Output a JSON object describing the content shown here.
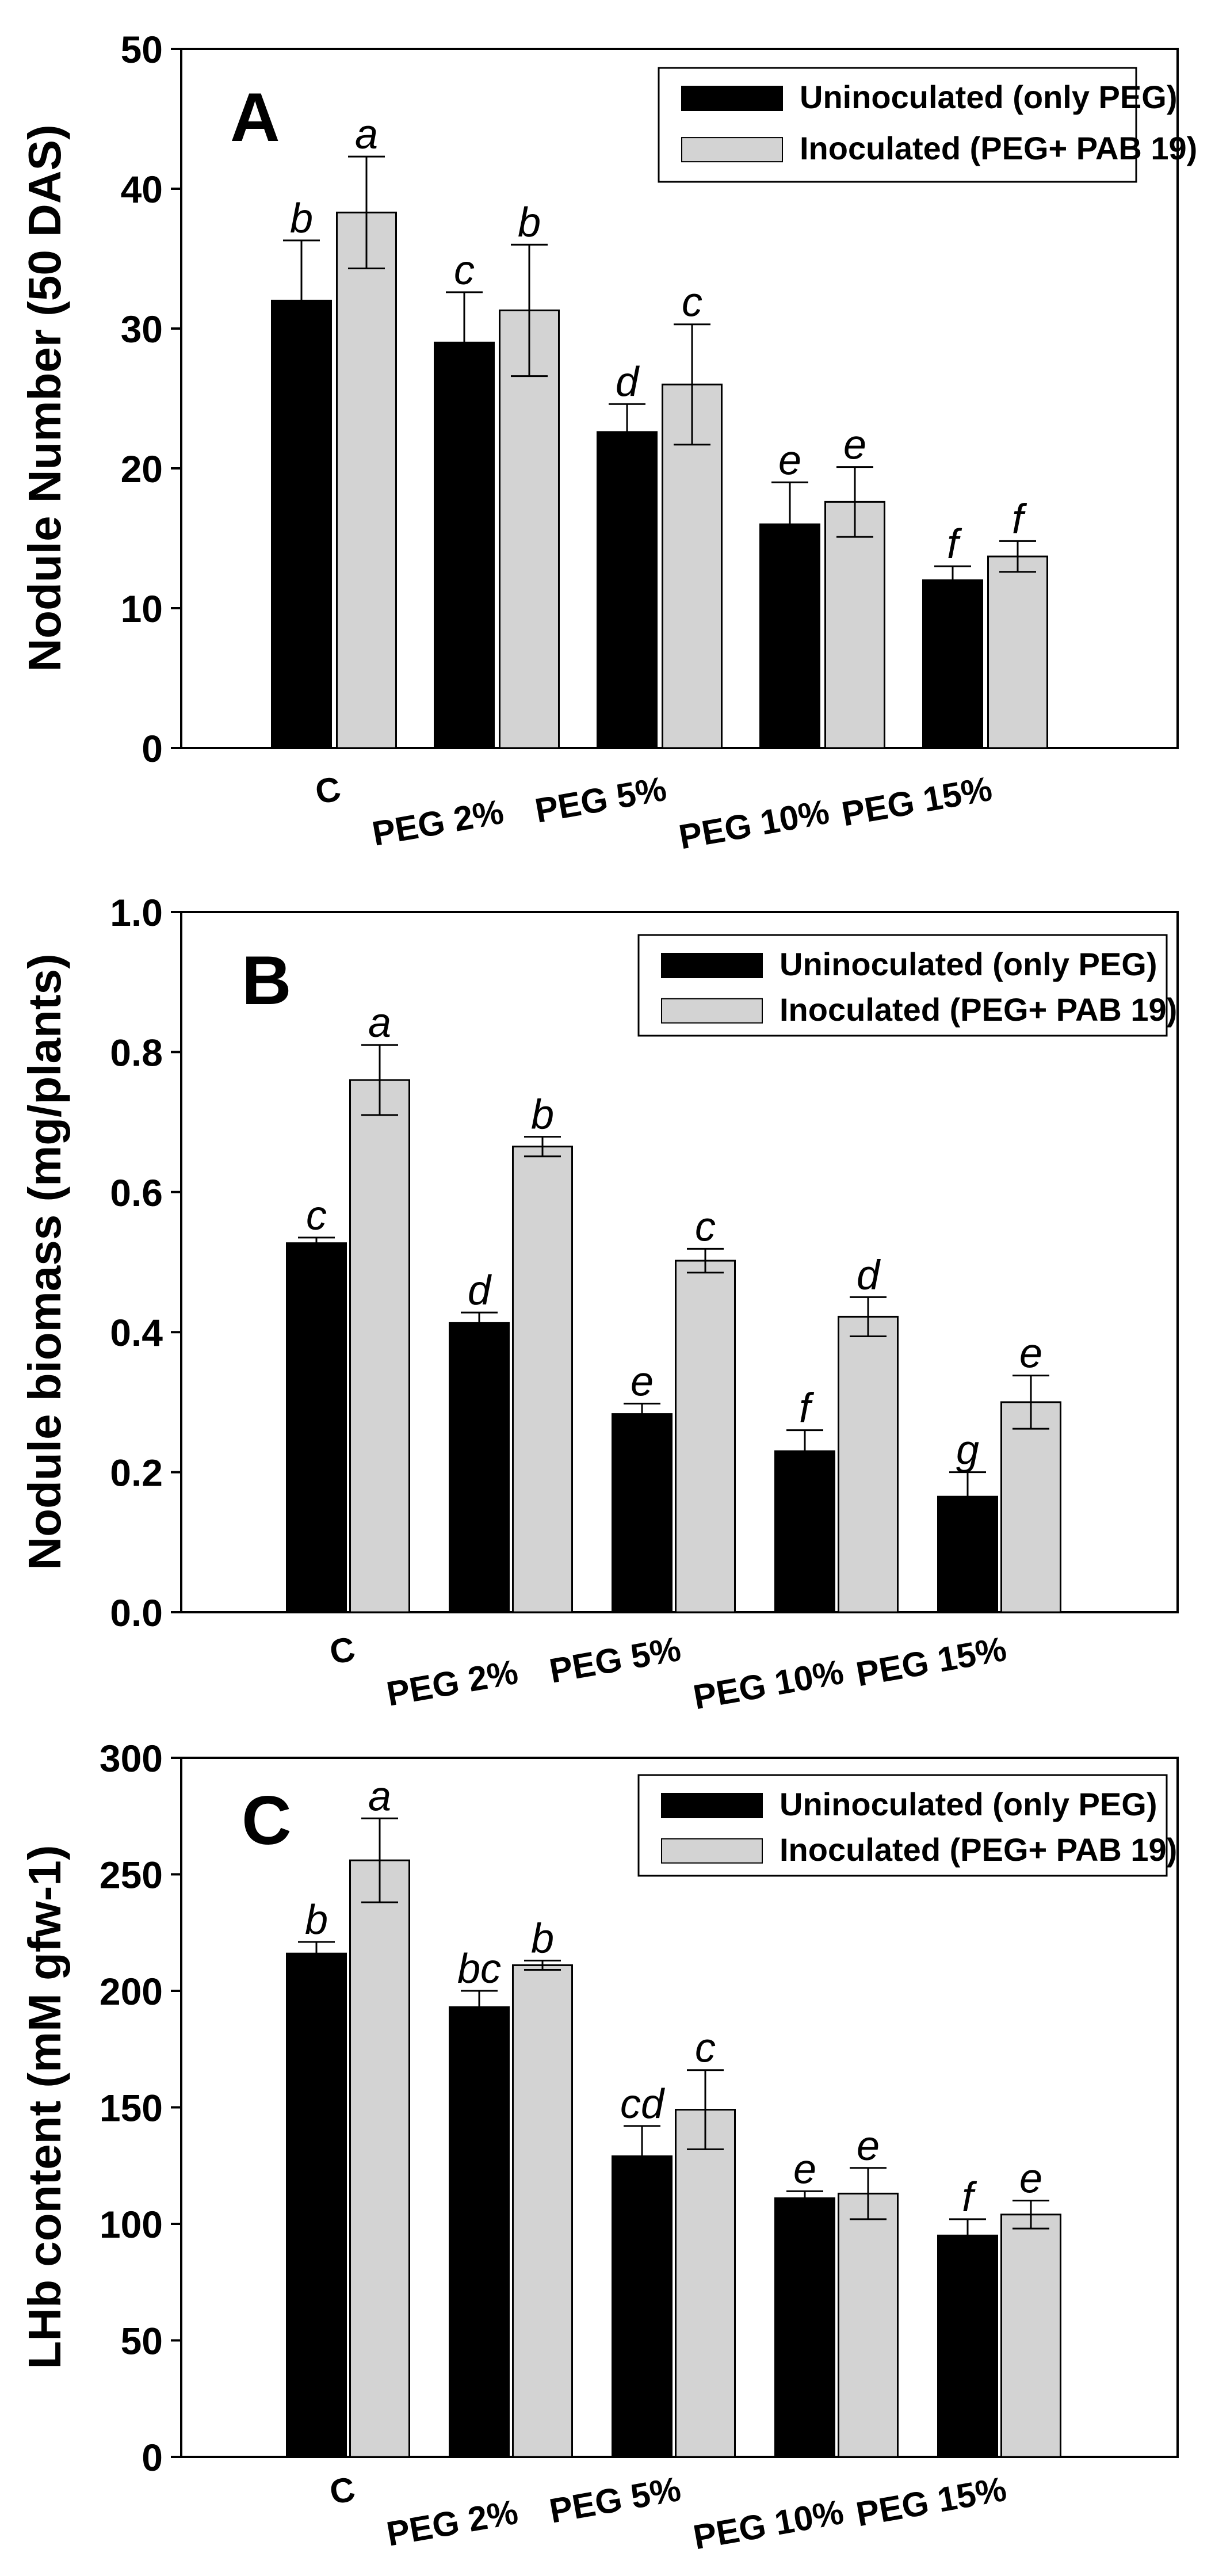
{
  "colors": {
    "uninoculated": "#000000",
    "inoculated": "#d3d3d3",
    "axis": "#000000",
    "background": "#ffffff"
  },
  "chart_data": [
    {
      "type": "bar",
      "panel": "A",
      "ylabel": "Nodule Number (50 DAS)",
      "ylim": [
        0,
        50
      ],
      "yticks": [
        "0",
        "10",
        "20",
        "30",
        "40",
        "50"
      ],
      "ytick_values": [
        0,
        10,
        20,
        30,
        40,
        50
      ],
      "categories": [
        "C",
        "PEG 2%",
        "PEG 5%",
        "PEG 10%",
        "PEG 15%"
      ],
      "legend_position": "top-right",
      "series": [
        {
          "name": "Uninoculated (only PEG)",
          "values": [
            32,
            29,
            22.6,
            16,
            12
          ],
          "errors": [
            4.3,
            3.6,
            2.0,
            3.0,
            1.0
          ],
          "labels": [
            "b",
            "c",
            "d",
            "e",
            "f"
          ]
        },
        {
          "name": "Inoculated (PEG+ PAB 19)",
          "values": [
            38.3,
            31.3,
            26,
            17.6,
            13.7
          ],
          "errors": [
            4.0,
            4.7,
            4.3,
            2.5,
            1.1
          ],
          "labels": [
            "a",
            "b",
            "c",
            "e",
            "f"
          ]
        }
      ]
    },
    {
      "type": "bar",
      "panel": "B",
      "ylabel": "Nodule biomass (mg/plants)",
      "ylim": [
        0,
        1.0
      ],
      "yticks": [
        "0.0",
        "0.2",
        "0.4",
        "0.6",
        "0.8",
        "1.0"
      ],
      "ytick_values": [
        0,
        0.2,
        0.4,
        0.6,
        0.8,
        1.0
      ],
      "categories": [
        "C",
        "PEG 2%",
        "PEG 5%",
        "PEG 10%",
        "PEG 15%"
      ],
      "legend_position": "top-right",
      "series": [
        {
          "name": "Uninoculated (only PEG)",
          "values": [
            0.527,
            0.413,
            0.283,
            0.23,
            0.165
          ],
          "errors": [
            0.008,
            0.015,
            0.015,
            0.03,
            0.035
          ],
          "labels": [
            "c",
            "d",
            "e",
            "f",
            "g"
          ]
        },
        {
          "name": "Inoculated (PEG+ PAB 19)",
          "values": [
            0.76,
            0.665,
            0.502,
            0.422,
            0.3
          ],
          "errors": [
            0.05,
            0.014,
            0.017,
            0.028,
            0.038
          ],
          "labels": [
            "a",
            "b",
            "c",
            "d",
            "e"
          ]
        }
      ]
    },
    {
      "type": "bar",
      "panel": "C",
      "ylabel": "LHb content (mM gfw-1)",
      "ylim": [
        0,
        300
      ],
      "yticks": [
        "0",
        "50",
        "100",
        "150",
        "200",
        "250",
        "300"
      ],
      "ytick_values": [
        0,
        50,
        100,
        150,
        200,
        250,
        300
      ],
      "categories": [
        "C",
        "PEG 2%",
        "PEG 5%",
        "PEG 10%",
        "PEG 15%"
      ],
      "legend_position": "top-right",
      "series": [
        {
          "name": "Uninoculated (only PEG)",
          "values": [
            216,
            193,
            129,
            111,
            95
          ],
          "errors": [
            5,
            7,
            13,
            3,
            7
          ],
          "labels": [
            "b",
            "bc",
            "cd",
            "e",
            "f"
          ]
        },
        {
          "name": "Inoculated (PEG+ PAB 19)",
          "values": [
            256,
            211,
            149,
            113,
            104
          ],
          "errors": [
            18,
            2,
            17,
            11,
            6
          ],
          "labels": [
            "a",
            "b",
            "c",
            "e",
            "e"
          ]
        }
      ]
    }
  ]
}
